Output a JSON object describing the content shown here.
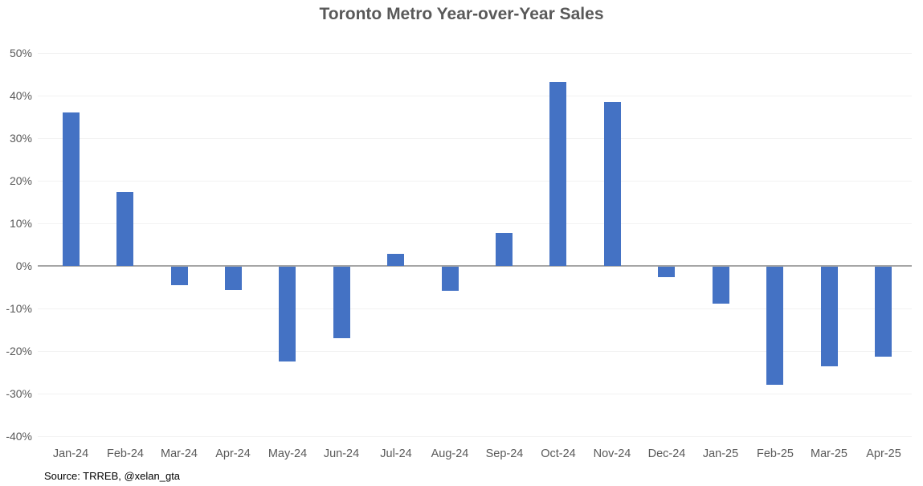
{
  "title": "Toronto Metro Year-over-Year Sales",
  "source_note": "Source: TRREB, @xelan_gta",
  "colors": {
    "bar": "#4472C4",
    "title_text": "#595959",
    "axis_text": "#595959",
    "gridline": "#F2F2F2",
    "zero_line": "#A6A6A6",
    "source_text": "#000000",
    "background": "#FFFFFF"
  },
  "chart_data": {
    "type": "bar",
    "title": "Toronto Metro Year-over-Year Sales",
    "categories": [
      "Jan-24",
      "Feb-24",
      "Mar-24",
      "Apr-24",
      "May-24",
      "Jun-24",
      "Jul-24",
      "Aug-24",
      "Sep-24",
      "Oct-24",
      "Nov-24",
      "Dec-24",
      "Jan-25",
      "Feb-25",
      "Mar-25",
      "Apr-25"
    ],
    "values": [
      36.0,
      17.3,
      -4.4,
      -5.5,
      -22.2,
      -16.8,
      2.8,
      -5.7,
      7.7,
      43.2,
      38.5,
      -2.5,
      -8.7,
      -27.8,
      -23.4,
      -21.1
    ],
    "value_unit": "%",
    "xlabel": "",
    "ylabel": "",
    "ylim": [
      -40,
      50
    ],
    "y_ticks": [
      50,
      40,
      30,
      20,
      10,
      0,
      -10,
      -20,
      -30,
      -40
    ],
    "y_tick_labels": [
      "50%",
      "40%",
      "30%",
      "20%",
      "10%",
      "0%",
      "-10%",
      "-20%",
      "-30%",
      "-40%"
    ],
    "grid": true,
    "legend": false,
    "annotation": "Source: TRREB, @xelan_gta"
  }
}
